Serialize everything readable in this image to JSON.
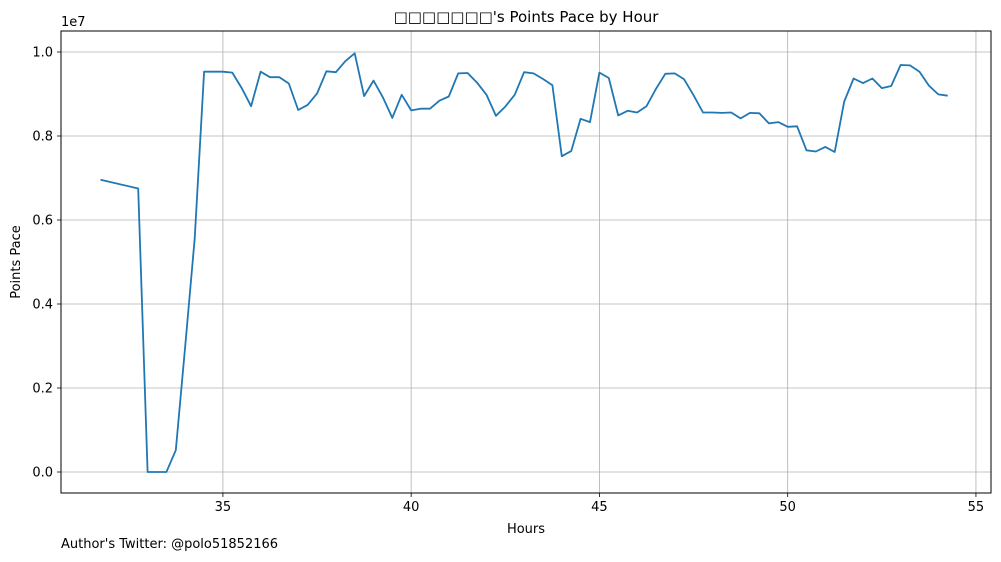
{
  "chart_data": {
    "type": "line",
    "title": "□□□□□□□'s Points Pace by Hour",
    "xlabel": "Hours",
    "ylabel": "Points Pace",
    "y_multiplier_label": "1e7",
    "xlim": [
      30.7,
      55.4
    ],
    "ylim": [
      -0.05,
      1.05
    ],
    "x_ticks": [
      35,
      40,
      45,
      50,
      55
    ],
    "y_ticks": [
      0.0,
      0.2,
      0.4,
      0.6,
      0.8,
      1.0
    ],
    "x_tick_labels": [
      "35",
      "40",
      "45",
      "50",
      "55"
    ],
    "y_tick_labels": [
      "0.0",
      "0.2",
      "0.4",
      "0.6",
      "0.8",
      "1.0"
    ],
    "grid": true,
    "line_color": "#1f77b4",
    "series": [
      {
        "x": [
          31.75,
          32.75,
          33.0,
          33.5,
          33.75,
          34.0,
          34.25,
          34.5,
          34.75,
          35.0,
          35.25,
          35.5,
          35.75,
          36.0,
          36.25,
          36.5,
          36.75,
          37.0,
          37.25,
          37.5,
          37.75,
          38.0,
          38.25,
          38.5,
          38.75,
          39.0,
          39.25,
          39.5,
          39.75,
          40.0,
          40.25,
          40.5,
          40.75,
          41.0,
          41.25,
          41.5,
          41.75,
          42.0,
          42.25,
          42.5,
          42.75,
          43.0,
          43.25,
          43.5,
          43.75,
          44.0,
          44.25,
          44.5,
          44.75,
          45.0,
          45.25,
          45.5,
          45.75,
          46.0,
          46.25,
          46.5,
          46.75,
          47.0,
          47.25,
          47.5,
          47.75,
          48.0,
          48.25,
          48.5,
          48.75,
          49.0,
          49.25,
          49.5,
          49.75,
          50.0,
          50.25,
          50.5,
          50.75,
          51.0,
          51.25,
          51.5,
          51.75,
          52.0,
          52.25,
          52.5,
          52.75,
          53.0,
          53.25,
          53.5,
          53.75,
          54.0,
          54.25
        ],
        "y": [
          0.696,
          0.675,
          0.0,
          0.0,
          0.052,
          0.302,
          0.556,
          0.953,
          0.953,
          0.953,
          0.951,
          0.914,
          0.871,
          0.953,
          0.94,
          0.94,
          0.925,
          0.862,
          0.874,
          0.901,
          0.954,
          0.952,
          0.978,
          0.997,
          0.895,
          0.932,
          0.892,
          0.843,
          0.898,
          0.861,
          0.865,
          0.865,
          0.884,
          0.894,
          0.949,
          0.95,
          0.927,
          0.898,
          0.848,
          0.87,
          0.898,
          0.952,
          0.949,
          0.936,
          0.921,
          0.752,
          0.764,
          0.841,
          0.833,
          0.951,
          0.938,
          0.849,
          0.86,
          0.856,
          0.871,
          0.912,
          0.948,
          0.949,
          0.935,
          0.897,
          0.856,
          0.856,
          0.855,
          0.856,
          0.842,
          0.855,
          0.854,
          0.83,
          0.833,
          0.822,
          0.823,
          0.766,
          0.763,
          0.774,
          0.762,
          0.882,
          0.937,
          0.926,
          0.937,
          0.914,
          0.919,
          0.969,
          0.968,
          0.953,
          0.92,
          0.899,
          0.896
        ]
      }
    ]
  },
  "footer_text": "Author's Twitter: @polo51852166"
}
